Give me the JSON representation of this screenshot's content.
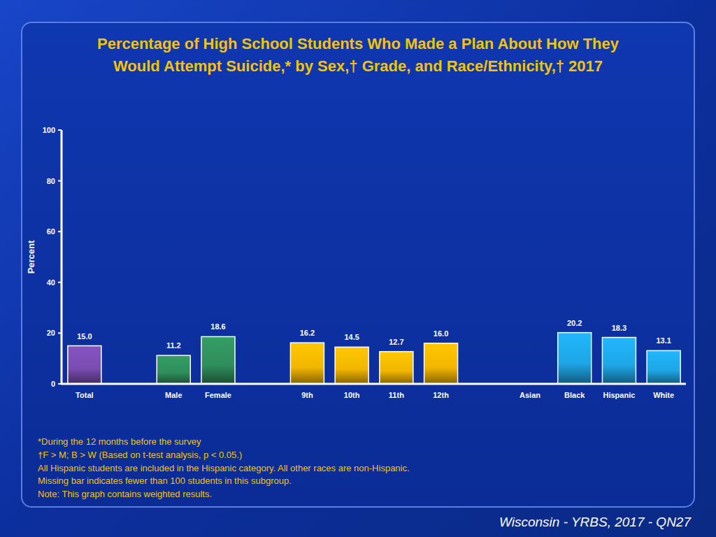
{
  "chart_data": {
    "type": "bar",
    "title": [
      "Percentage of High School Students Who Made a Plan About How They",
      "Would Attempt Suicide,* by Sex,† Grade, and Race/Ethnicity,† 2017"
    ],
    "ylabel": "Percent",
    "categories": [
      "Total",
      null,
      "Male",
      "Female",
      null,
      "9th",
      "10th",
      "11th",
      "12th",
      null,
      "Asian",
      "Black",
      "Hispanic",
      "White"
    ],
    "values": [
      15.0,
      null,
      11.2,
      18.6,
      null,
      16.2,
      14.5,
      12.7,
      16.0,
      null,
      null,
      20.2,
      18.3,
      13.1
    ],
    "value_labels": [
      "15.0",
      null,
      "11.2",
      "18.6",
      null,
      "16.2",
      "14.5",
      "12.7",
      "16.0",
      null,
      null,
      "20.2",
      "18.3",
      "13.1"
    ],
    "colors": [
      "#7a4cb0",
      null,
      "#2f8f5c",
      "#2f8f5c",
      null,
      "#f2b600",
      "#f2b600",
      "#f2b600",
      "#f2b600",
      null,
      "#1ea6e6",
      "#1ea6e6",
      "#1ea6e6",
      "#1ea6e6"
    ],
    "ylim": [
      0,
      100
    ],
    "yticks": [
      0,
      20,
      40,
      60,
      80,
      100
    ],
    "grid": false,
    "data_labels": true,
    "annotations": [
      "*During the 12 months before the survey",
      "†F > M; B > W (Based on t-test analysis, p < 0.05.)",
      "All Hispanic students are included in the Hispanic category.  All other races are non-Hispanic.",
      "Missing bar indicates fewer than 100 students in this subgroup.",
      "Note: This graph contains weighted results."
    ],
    "source": "Wisconsin - YRBS, 2017 - QN27"
  }
}
